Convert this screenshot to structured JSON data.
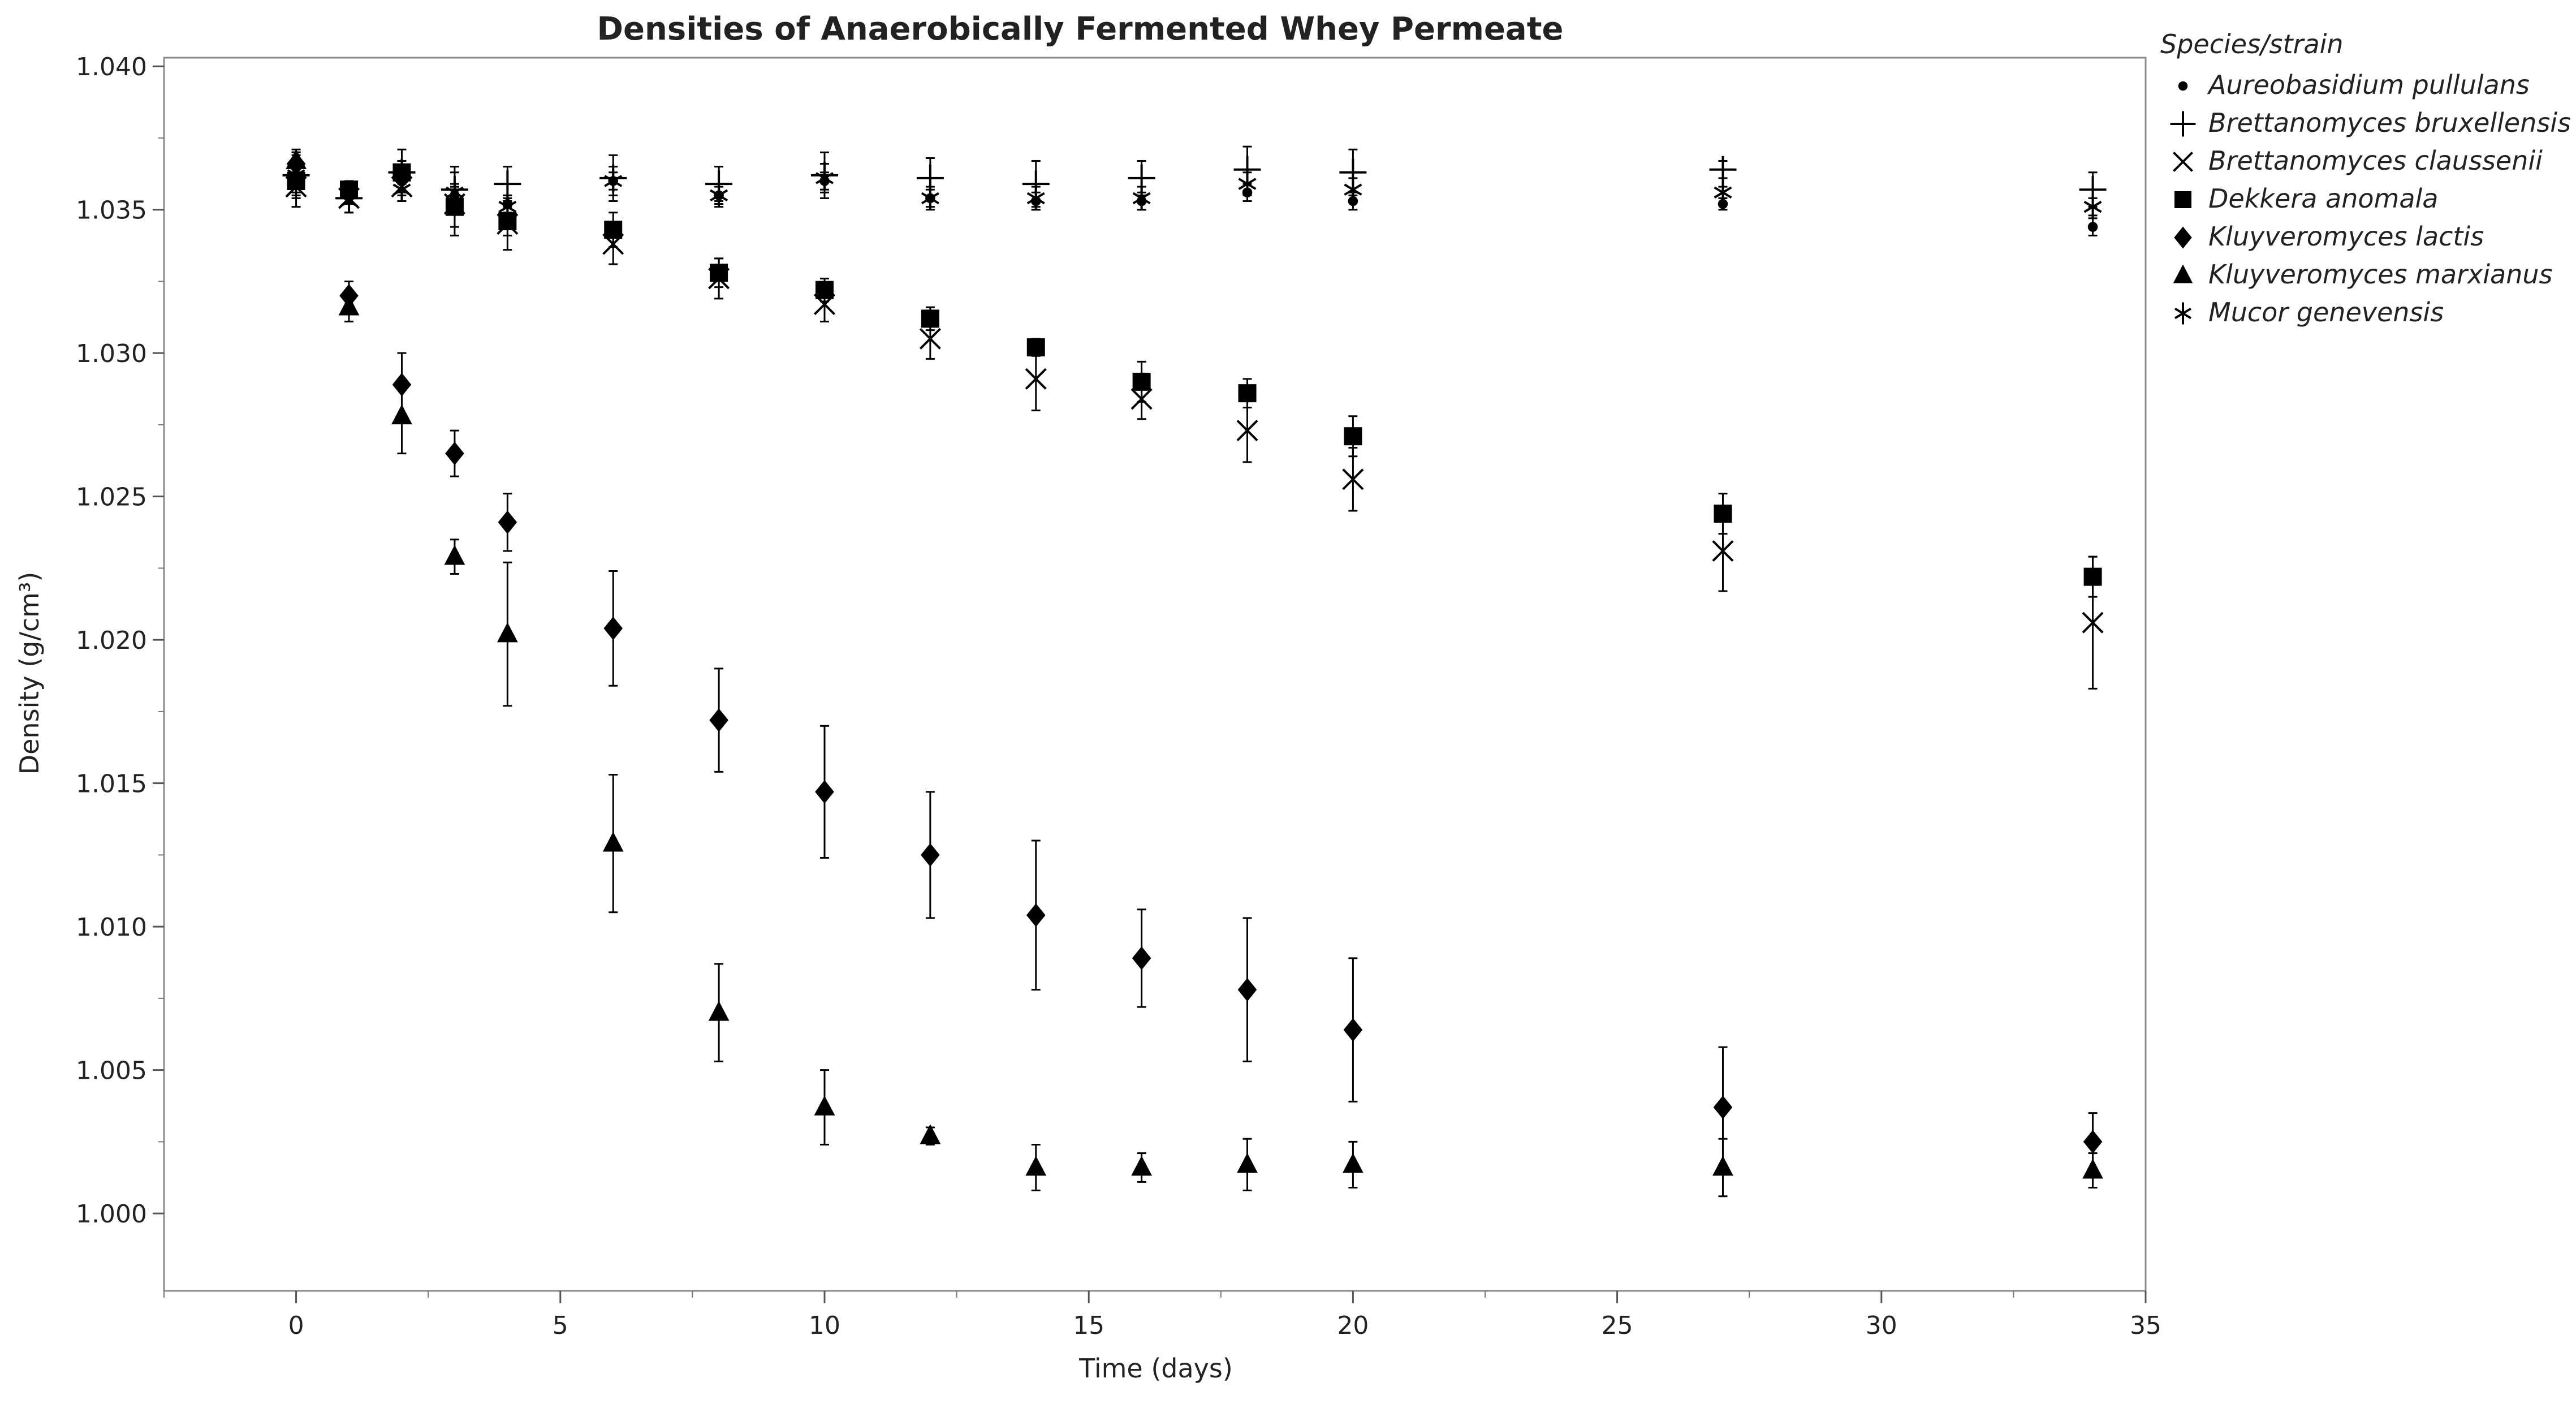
{
  "chart_data": {
    "type": "scatter",
    "title": "Densities of Anaerobically Fermented Whey Permeate",
    "xlabel": "Time (days)",
    "ylabel": "Density (g/cm³)",
    "xlim": [
      -2.5,
      35
    ],
    "ylim": [
      0.9973,
      1.0403
    ],
    "xticks": [
      0,
      5,
      10,
      15,
      20,
      25,
      30,
      35
    ],
    "xtick_labels": [
      "0",
      "5",
      "10",
      "15",
      "20",
      "25",
      "30",
      "35"
    ],
    "yticks": [
      1.0,
      1.005,
      1.01,
      1.015,
      1.02,
      1.025,
      1.03,
      1.035,
      1.04
    ],
    "ytick_labels": [
      "1.000",
      "1.005",
      "1.010",
      "1.015",
      "1.020",
      "1.025",
      "1.030",
      "1.035",
      "1.040"
    ],
    "grid": false,
    "legend_position": "top-right-outside",
    "legend_title": "Species/strain",
    "x": [
      0,
      1,
      2,
      3,
      4,
      6,
      8,
      10,
      12,
      14,
      16,
      18,
      20,
      27,
      34
    ],
    "series": [
      {
        "name": "Aureobasidium pullulans",
        "marker": "circle",
        "y": [
          1.0365,
          1.0355,
          1.036,
          1.0355,
          1.0352,
          1.036,
          1.0355,
          1.036,
          1.0354,
          1.0353,
          1.0353,
          1.0356,
          1.0353,
          1.0352,
          1.0344
        ],
        "err": [
          0.0005,
          0.0003,
          0.0004,
          0.0003,
          0.0003,
          0.0003,
          0.0003,
          0.0003,
          0.0003,
          0.0003,
          0.0003,
          0.0003,
          0.0003,
          0.0002,
          0.0003
        ]
      },
      {
        "name": "Brettanomyces bruxellensis",
        "marker": "plus",
        "y": [
          1.0362,
          1.0354,
          1.0363,
          1.0357,
          1.0359,
          1.0361,
          1.0359,
          1.0362,
          1.0361,
          1.0359,
          1.0361,
          1.0364,
          1.0363,
          1.0364,
          1.0357
        ],
        "err": [
          0.0007,
          0.0005,
          0.0008,
          0.0008,
          0.0006,
          0.0008,
          0.0006,
          0.0008,
          0.0007,
          0.0008,
          0.0006,
          0.0008,
          0.0008,
          0.0003,
          0.0006
        ]
      },
      {
        "name": "Brettanomyces claussenii",
        "marker": "cross",
        "y": [
          1.0358,
          1.0354,
          1.0358,
          1.0352,
          1.0345,
          1.0338,
          1.0326,
          1.0317,
          1.0305,
          1.0291,
          1.0284,
          1.0273,
          1.0256,
          1.0231,
          1.0206
        ],
        "err": [
          0.0007,
          0.0005,
          0.0005,
          0.0011,
          0.0009,
          0.0007,
          0.0007,
          0.0006,
          0.0007,
          0.0011,
          0.0007,
          0.0011,
          0.0011,
          0.0014,
          0.0023
        ]
      },
      {
        "name": "Dekkera anomala",
        "marker": "square",
        "y": [
          1.036,
          1.0357,
          1.0363,
          1.0351,
          1.0346,
          1.0343,
          1.0328,
          1.0322,
          1.0312,
          1.0302,
          1.029,
          1.0286,
          1.0271,
          1.0244,
          1.0222
        ],
        "err": [
          0.0006,
          0.0003,
          0.0004,
          0.0007,
          0.0005,
          0.0006,
          0.0005,
          0.0004,
          0.0004,
          0.0003,
          0.0007,
          0.0005,
          0.0007,
          0.0007,
          0.0007
        ]
      },
      {
        "name": "Kluyveromyces lactis",
        "marker": "diamond",
        "y": [
          1.0366,
          1.032,
          1.0289,
          1.0265,
          1.0241,
          1.0204,
          1.0172,
          1.0147,
          1.0125,
          1.0104,
          1.0089,
          1.0078,
          1.0064,
          1.0037,
          1.0025
        ],
        "err": [
          0.0004,
          0.0005,
          0.0011,
          0.0008,
          0.001,
          0.002,
          0.0018,
          0.0023,
          0.0022,
          0.0026,
          0.0017,
          0.0025,
          0.0025,
          0.0021,
          0.001
        ]
      },
      {
        "name": "Kluyveromyces marxianus",
        "marker": "triangle",
        "y": [
          1.0367,
          1.0316,
          1.0278,
          1.0229,
          1.0202,
          1.0129,
          1.007,
          1.0037,
          1.0027,
          1.0016,
          1.0016,
          1.0017,
          1.0017,
          1.0016,
          1.0015
        ],
        "err": [
          0.0004,
          0.0005,
          0.0013,
          0.0006,
          0.0025,
          0.0024,
          0.0017,
          0.0013,
          0.0003,
          0.0008,
          0.0005,
          0.0009,
          0.0008,
          0.001,
          0.0006
        ]
      },
      {
        "name": "Mucor genevensis",
        "marker": "asterisk",
        "y": [
          1.0362,
          1.0353,
          1.0357,
          1.0356,
          1.0351,
          1.036,
          1.0355,
          1.0361,
          1.0354,
          1.0354,
          1.0354,
          1.0359,
          1.0357,
          1.0356,
          1.0351
        ],
        "err": [
          0.0006,
          0.0004,
          0.0004,
          0.0003,
          0.0004,
          0.0005,
          0.0004,
          0.0005,
          0.0004,
          0.0004,
          0.0004,
          0.0004,
          0.0004,
          0.0002,
          0.0003
        ]
      }
    ]
  }
}
